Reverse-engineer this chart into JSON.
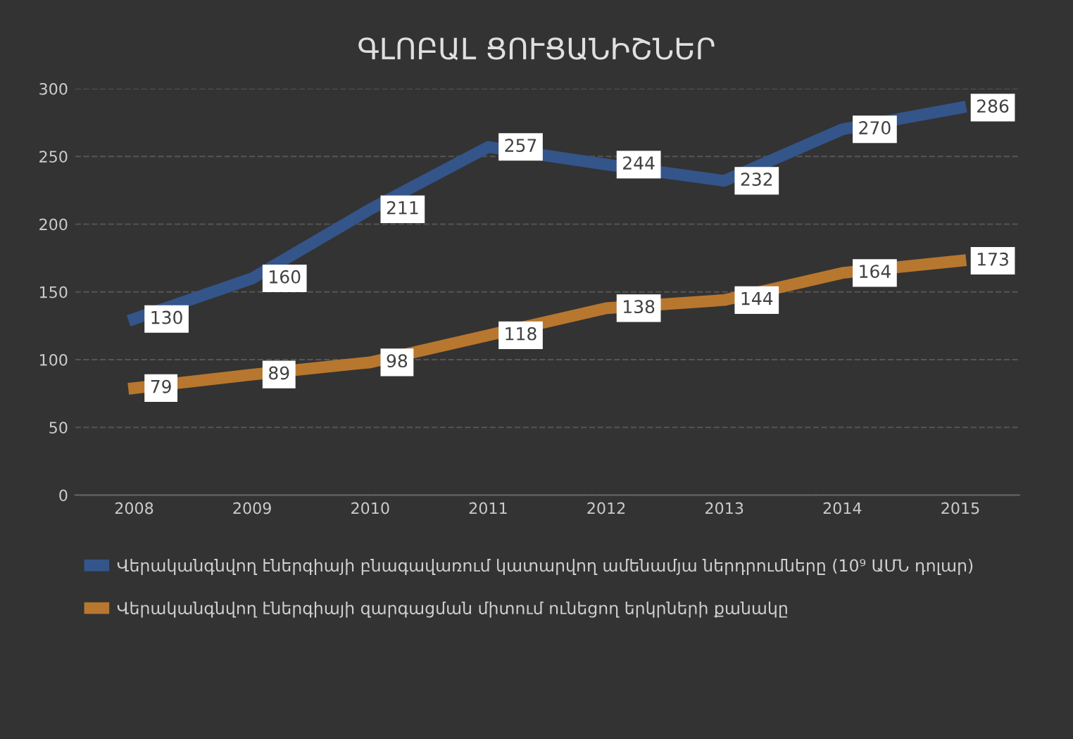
{
  "chart_data": {
    "type": "line",
    "title": "ԳԼՈԲԱԼ ՑՈՒՑԱՆԻՇՆԵՐ",
    "categories": [
      "2008",
      "2009",
      "2010",
      "2011",
      "2012",
      "2013",
      "2014",
      "2015"
    ],
    "series": [
      {
        "name": "Վերականգնվող էներգիայի բնագավառում կատարվող ամենամյա ներդրումները (10⁹ ԱՄՆ դոլար)",
        "color": "#34558a",
        "values": [
          130,
          160,
          211,
          257,
          244,
          232,
          270,
          286
        ]
      },
      {
        "name": "Վերականգնվող էներգիայի զարգացման միտում ունեցող երկրների քանակը",
        "color": "#b8772f",
        "values": [
          79,
          89,
          98,
          118,
          138,
          144,
          164,
          173
        ]
      }
    ],
    "ylim": [
      0,
      300
    ],
    "yticks": [
      0,
      50,
      100,
      150,
      200,
      250,
      300
    ],
    "grid": "y",
    "legend": "bottom",
    "data_labels": true,
    "marker": "none",
    "line_style": "solid"
  }
}
